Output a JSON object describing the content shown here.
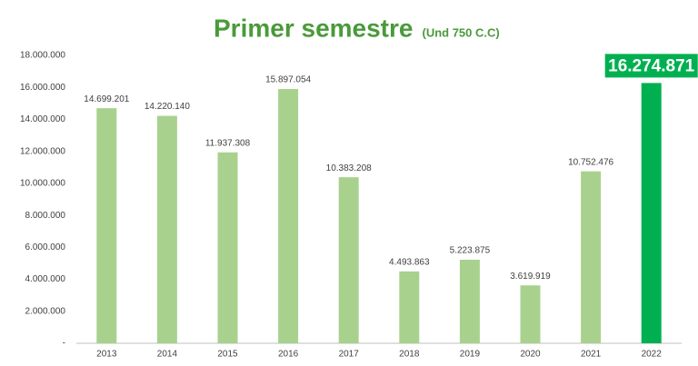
{
  "chart_data": {
    "type": "bar",
    "title": "Primer semestre",
    "subtitle": "(Und 750 C.C)",
    "categories": [
      "2013",
      "2014",
      "2015",
      "2016",
      "2017",
      "2018",
      "2019",
      "2020",
      "2021",
      "2022"
    ],
    "values": [
      14699201,
      14220140,
      11937308,
      15897054,
      10383208,
      4493863,
      5223875,
      3619919,
      10752476,
      16274871
    ],
    "value_labels": [
      "14.699.201",
      "14.220.140",
      "11.937.308",
      "15.897.054",
      "10.383.208",
      "4.493.863",
      "5.223.875",
      "3.619.919",
      "10.752.476",
      "16.274.871"
    ],
    "colors": [
      "#a9d18e",
      "#a9d18e",
      "#a9d18e",
      "#a9d18e",
      "#a9d18e",
      "#a9d18e",
      "#a9d18e",
      "#a9d18e",
      "#a9d18e",
      "#00b050"
    ],
    "ylim": [
      0,
      18000000
    ],
    "yticks": [
      {
        "value": 0,
        "label": "-"
      },
      {
        "value": 2000000,
        "label": "2.000.000"
      },
      {
        "value": 4000000,
        "label": "4.000.000"
      },
      {
        "value": 6000000,
        "label": "6.000.000"
      },
      {
        "value": 8000000,
        "label": "8.000.000"
      },
      {
        "value": 10000000,
        "label": "10.000.000"
      },
      {
        "value": 12000000,
        "label": "12.000.000"
      },
      {
        "value": 14000000,
        "label": "14.000.000"
      },
      {
        "value": 16000000,
        "label": "16.000.000"
      },
      {
        "value": 18000000,
        "label": "18.000.000"
      }
    ],
    "grid": false
  }
}
